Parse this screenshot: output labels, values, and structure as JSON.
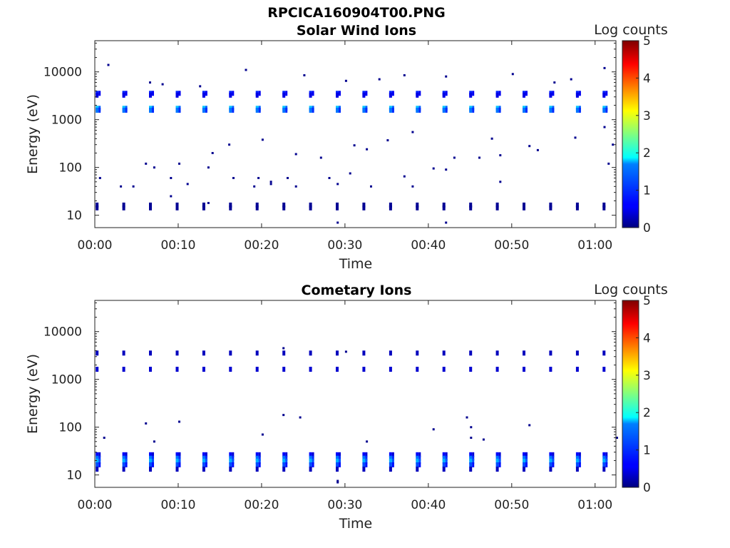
{
  "figure": {
    "title": "RPCICA160904T00.PNG"
  },
  "chart_data": [
    {
      "type": "heatmap",
      "title": "Solar Wind Ions",
      "xlabel": "Time",
      "ylabel": "Energy (eV)",
      "x_ticks": [
        "00:00",
        "00:10",
        "00:20",
        "00:30",
        "00:40",
        "00:50",
        "01:00"
      ],
      "x_range_minutes": [
        0,
        62.5
      ],
      "y_scale": "log",
      "y_ticks": [
        "10",
        "100",
        "1000",
        "10000"
      ],
      "y_range": [
        5.5,
        45000
      ],
      "colorbar": {
        "label": "Log counts",
        "ticks": [
          "0",
          "1",
          "2",
          "3",
          "4",
          "5"
        ],
        "range": [
          0,
          5
        ],
        "colormap": "jet"
      },
      "sweep_period_minutes": 3.2,
      "sweep_start_minutes": 0.1,
      "bands": [
        {
          "energy_ev": 1700,
          "log_counts": 1.6
        },
        {
          "energy_ev": 1550,
          "log_counts": 1.2
        },
        {
          "energy_ev": 3500,
          "log_counts": 0.8
        },
        {
          "energy_ev": 3200,
          "log_counts": 0.5
        },
        {
          "energy_ev": 16,
          "log_counts": 0.1
        },
        {
          "energy_ev": 14,
          "log_counts": 0.1
        }
      ],
      "sparse_points": [
        [
          1.5,
          14000
        ],
        [
          6.5,
          6000
        ],
        [
          8,
          5500
        ],
        [
          12.5,
          5000
        ],
        [
          18,
          11000
        ],
        [
          25,
          8500
        ],
        [
          30,
          6500
        ],
        [
          34,
          7000
        ],
        [
          37,
          8500
        ],
        [
          42,
          8000
        ],
        [
          50,
          9000
        ],
        [
          55,
          6000
        ],
        [
          57,
          7000
        ],
        [
          61,
          12000
        ],
        [
          0.5,
          60
        ],
        [
          6,
          120
        ],
        [
          7,
          100
        ],
        [
          9,
          60
        ],
        [
          10,
          120
        ],
        [
          13.5,
          100
        ],
        [
          16.5,
          60
        ],
        [
          19.5,
          60
        ],
        [
          21,
          50
        ],
        [
          23,
          60
        ],
        [
          28,
          60
        ],
        [
          30.5,
          75
        ],
        [
          32.5,
          240
        ],
        [
          37,
          65
        ],
        [
          40.5,
          95
        ],
        [
          42,
          90
        ],
        [
          48.5,
          50
        ],
        [
          61.5,
          120
        ],
        [
          62,
          300
        ],
        [
          3,
          40
        ],
        [
          4.5,
          40
        ],
        [
          9,
          25
        ],
        [
          11,
          45
        ],
        [
          13.5,
          18
        ],
        [
          19,
          40
        ],
        [
          21,
          45
        ],
        [
          24,
          40
        ],
        [
          29,
          45
        ],
        [
          33,
          40
        ],
        [
          38,
          40
        ],
        [
          42,
          7
        ],
        [
          29,
          7
        ],
        [
          14,
          200
        ],
        [
          16,
          300
        ],
        [
          20,
          380
        ],
        [
          24,
          190
        ],
        [
          27,
          160
        ],
        [
          31,
          290
        ],
        [
          35,
          370
        ],
        [
          38,
          550
        ],
        [
          43,
          160
        ],
        [
          46,
          160
        ],
        [
          47.5,
          400
        ],
        [
          48.5,
          180
        ],
        [
          52,
          280
        ],
        [
          53,
          230
        ],
        [
          57.5,
          420
        ],
        [
          61,
          700
        ]
      ]
    },
    {
      "type": "heatmap",
      "title": "Cometary Ions",
      "xlabel": "Time",
      "ylabel": "Energy (eV)",
      "x_ticks": [
        "00:00",
        "00:10",
        "00:20",
        "00:30",
        "00:40",
        "00:50",
        "01:00"
      ],
      "x_range_minutes": [
        0,
        62.5
      ],
      "y_scale": "log",
      "y_ticks": [
        "10",
        "100",
        "1000",
        "10000"
      ],
      "y_range": [
        5.5,
        45000
      ],
      "colorbar": {
        "label": "Log counts",
        "ticks": [
          "0",
          "1",
          "2",
          "3",
          "4",
          "5"
        ],
        "range": [
          0,
          5
        ],
        "colormap": "jet"
      },
      "sweep_period_minutes": 3.2,
      "sweep_start_minutes": 0.1,
      "bands": [
        {
          "energy_ev": 26,
          "log_counts": 0.6
        },
        {
          "energy_ev": 22,
          "log_counts": 1.2
        },
        {
          "energy_ev": 19,
          "log_counts": 1.5
        },
        {
          "energy_ev": 16,
          "log_counts": 1.0
        },
        {
          "energy_ev": 13,
          "log_counts": 0.3
        },
        {
          "energy_ev": 1600,
          "log_counts": 0.4
        },
        {
          "energy_ev": 3500,
          "log_counts": 0.3
        }
      ],
      "sparse_points": [
        [
          1,
          60
        ],
        [
          6,
          120
        ],
        [
          7,
          50
        ],
        [
          10,
          130
        ],
        [
          20,
          70
        ],
        [
          22.5,
          4500
        ],
        [
          22.5,
          180
        ],
        [
          24.5,
          160
        ],
        [
          29,
          7
        ],
        [
          30,
          3800
        ],
        [
          32.5,
          50
        ],
        [
          40.5,
          90
        ],
        [
          44.5,
          160
        ],
        [
          45,
          100
        ],
        [
          45,
          60
        ],
        [
          46.5,
          55
        ],
        [
          52,
          110
        ],
        [
          62.5,
          60
        ],
        [
          29,
          7.5
        ]
      ]
    }
  ]
}
